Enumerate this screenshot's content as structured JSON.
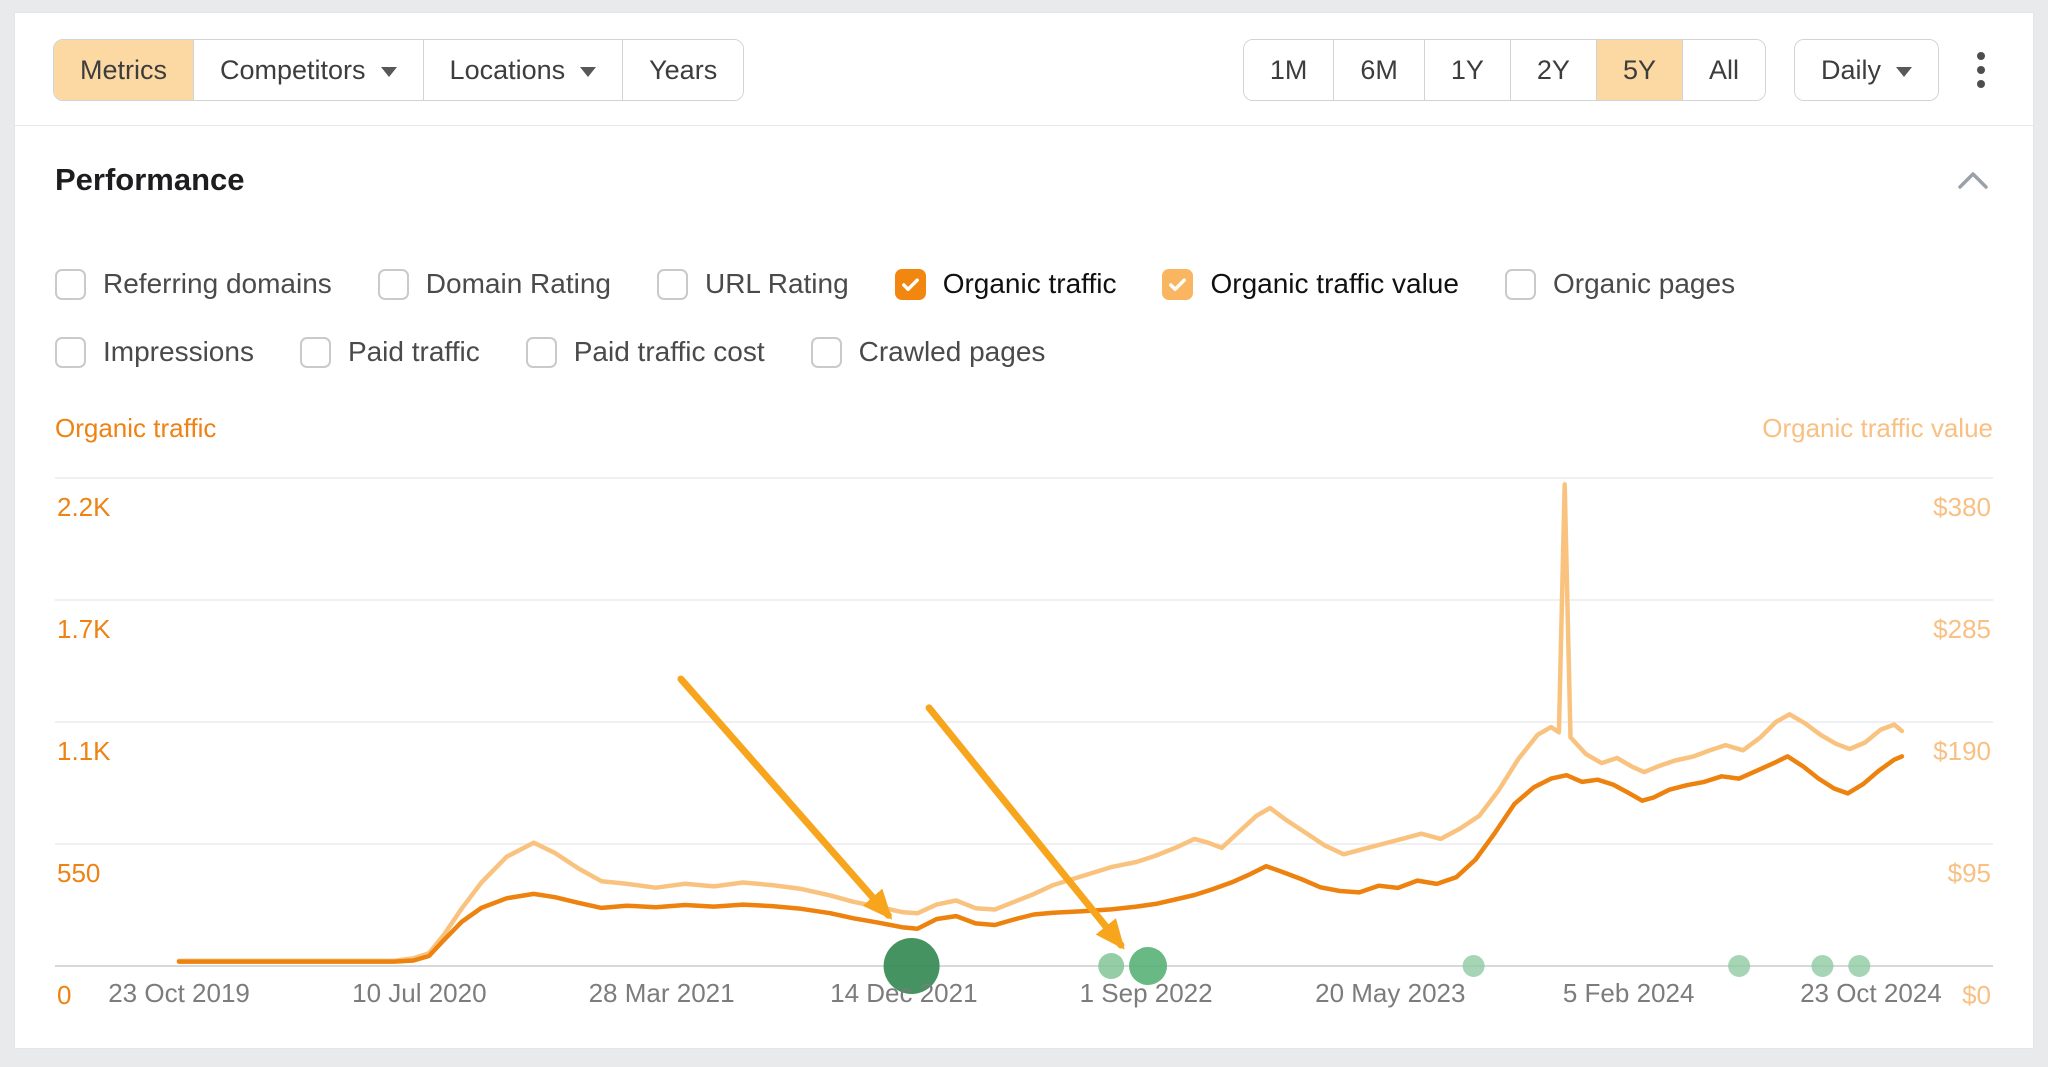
{
  "toolbar": {
    "accent_bg": "#fcd9a2",
    "tabs": [
      {
        "label": "Metrics",
        "active": true,
        "dropdown": false
      },
      {
        "label": "Competitors",
        "active": false,
        "dropdown": true
      },
      {
        "label": "Locations",
        "active": false,
        "dropdown": true
      },
      {
        "label": "Years",
        "active": false,
        "dropdown": false
      }
    ],
    "ranges": [
      {
        "label": "1M",
        "active": false
      },
      {
        "label": "6M",
        "active": false
      },
      {
        "label": "1Y",
        "active": false
      },
      {
        "label": "2Y",
        "active": false
      },
      {
        "label": "5Y",
        "active": true
      },
      {
        "label": "All",
        "active": false
      }
    ],
    "granularity": {
      "label": "Daily",
      "dropdown": true
    }
  },
  "section": {
    "title": "Performance"
  },
  "metrics": {
    "rows": [
      [
        {
          "label": "Referring domains",
          "checked": false
        },
        {
          "label": "Domain Rating",
          "checked": false
        },
        {
          "label": "URL Rating",
          "checked": false
        },
        {
          "label": "Organic traffic",
          "checked": true,
          "color": "#f1870f"
        },
        {
          "label": "Organic traffic value",
          "checked": true,
          "color": "#f9b55f"
        },
        {
          "label": "Organic pages",
          "checked": false
        }
      ],
      [
        {
          "label": "Impressions",
          "checked": false
        },
        {
          "label": "Paid traffic",
          "checked": false
        },
        {
          "label": "Paid traffic cost",
          "checked": false
        },
        {
          "label": "Crawled pages",
          "checked": false
        }
      ]
    ]
  },
  "chart_data": {
    "type": "line",
    "x_range": [
      "23 Oct 2019",
      "23 Oct 2024"
    ],
    "grid": true,
    "left_axis": {
      "label": "Organic traffic",
      "color": "#ee8213",
      "max": 2200,
      "ticks": [
        {
          "label": "2.2K",
          "value": 2200
        },
        {
          "label": "1.7K",
          "value": 1650
        },
        {
          "label": "1.1K",
          "value": 1100
        },
        {
          "label": "550",
          "value": 550
        },
        {
          "label": "0",
          "value": 0
        }
      ]
    },
    "right_axis": {
      "label": "Organic traffic value",
      "color": "#f8c083",
      "max": 380,
      "ticks": [
        {
          "label": "$380",
          "value": 380
        },
        {
          "label": "$285",
          "value": 285
        },
        {
          "label": "$190",
          "value": 190
        },
        {
          "label": "$95",
          "value": 95
        },
        {
          "label": "$0",
          "value": 0
        }
      ]
    },
    "x_ticks": [
      {
        "label": "23 Oct 2019",
        "pos": 0.064
      },
      {
        "label": "10 Jul 2020",
        "pos": 0.188
      },
      {
        "label": "28 Mar 2021",
        "pos": 0.313
      },
      {
        "label": "14 Dec 2021",
        "pos": 0.438
      },
      {
        "label": "1 Sep 2022",
        "pos": 0.563
      },
      {
        "label": "20 May 2023",
        "pos": 0.689
      },
      {
        "label": "5 Feb 2024",
        "pos": 0.812
      },
      {
        "label": "23 Oct 2024",
        "pos": 0.937
      }
    ],
    "series": [
      {
        "name": "Organic traffic",
        "axis": "left",
        "color": "#ee820e",
        "points": [
          [
            0.064,
            20
          ],
          [
            0.09,
            20
          ],
          [
            0.12,
            20
          ],
          [
            0.15,
            20
          ],
          [
            0.175,
            20
          ],
          [
            0.185,
            25
          ],
          [
            0.193,
            45
          ],
          [
            0.201,
            120
          ],
          [
            0.21,
            200
          ],
          [
            0.22,
            262
          ],
          [
            0.233,
            305
          ],
          [
            0.247,
            325
          ],
          [
            0.258,
            310
          ],
          [
            0.27,
            285
          ],
          [
            0.282,
            262
          ],
          [
            0.295,
            272
          ],
          [
            0.31,
            265
          ],
          [
            0.325,
            275
          ],
          [
            0.34,
            268
          ],
          [
            0.355,
            277
          ],
          [
            0.37,
            270
          ],
          [
            0.385,
            258
          ],
          [
            0.4,
            238
          ],
          [
            0.412,
            215
          ],
          [
            0.425,
            195
          ],
          [
            0.437,
            175
          ],
          [
            0.445,
            168
          ],
          [
            0.455,
            212
          ],
          [
            0.465,
            225
          ],
          [
            0.475,
            192
          ],
          [
            0.485,
            185
          ],
          [
            0.495,
            210
          ],
          [
            0.505,
            232
          ],
          [
            0.515,
            240
          ],
          [
            0.53,
            247
          ],
          [
            0.545,
            255
          ],
          [
            0.558,
            268
          ],
          [
            0.568,
            280
          ],
          [
            0.578,
            300
          ],
          [
            0.588,
            320
          ],
          [
            0.598,
            348
          ],
          [
            0.608,
            380
          ],
          [
            0.617,
            415
          ],
          [
            0.625,
            450
          ],
          [
            0.633,
            425
          ],
          [
            0.643,
            392
          ],
          [
            0.653,
            355
          ],
          [
            0.663,
            338
          ],
          [
            0.673,
            332
          ],
          [
            0.683,
            362
          ],
          [
            0.693,
            352
          ],
          [
            0.703,
            385
          ],
          [
            0.713,
            370
          ],
          [
            0.723,
            400
          ],
          [
            0.733,
            480
          ],
          [
            0.743,
            600
          ],
          [
            0.753,
            730
          ],
          [
            0.763,
            805
          ],
          [
            0.772,
            845
          ],
          [
            0.78,
            860
          ],
          [
            0.788,
            830
          ],
          [
            0.796,
            840
          ],
          [
            0.804,
            818
          ],
          [
            0.812,
            780
          ],
          [
            0.819,
            745
          ],
          [
            0.825,
            760
          ],
          [
            0.833,
            795
          ],
          [
            0.842,
            815
          ],
          [
            0.851,
            830
          ],
          [
            0.86,
            855
          ],
          [
            0.869,
            845
          ],
          [
            0.878,
            880
          ],
          [
            0.887,
            915
          ],
          [
            0.894,
            945
          ],
          [
            0.902,
            900
          ],
          [
            0.91,
            845
          ],
          [
            0.918,
            800
          ],
          [
            0.925,
            778
          ],
          [
            0.933,
            820
          ],
          [
            0.941,
            880
          ],
          [
            0.949,
            930
          ],
          [
            0.953,
            945
          ]
        ]
      },
      {
        "name": "Organic traffic value",
        "axis": "right",
        "color": "#f9c37f",
        "points": [
          [
            0.064,
            4
          ],
          [
            0.09,
            4
          ],
          [
            0.12,
            4
          ],
          [
            0.15,
            4
          ],
          [
            0.175,
            4
          ],
          [
            0.185,
            6
          ],
          [
            0.193,
            10
          ],
          [
            0.201,
            25
          ],
          [
            0.21,
            45
          ],
          [
            0.22,
            65
          ],
          [
            0.233,
            85
          ],
          [
            0.247,
            96
          ],
          [
            0.258,
            88
          ],
          [
            0.27,
            76
          ],
          [
            0.282,
            66
          ],
          [
            0.295,
            64
          ],
          [
            0.31,
            61
          ],
          [
            0.325,
            64
          ],
          [
            0.34,
            62
          ],
          [
            0.355,
            65
          ],
          [
            0.37,
            63
          ],
          [
            0.385,
            60
          ],
          [
            0.4,
            55
          ],
          [
            0.412,
            50
          ],
          [
            0.425,
            46
          ],
          [
            0.437,
            42
          ],
          [
            0.445,
            41
          ],
          [
            0.455,
            48
          ],
          [
            0.465,
            51
          ],
          [
            0.475,
            45
          ],
          [
            0.485,
            44
          ],
          [
            0.495,
            50
          ],
          [
            0.505,
            56
          ],
          [
            0.515,
            63
          ],
          [
            0.53,
            70
          ],
          [
            0.545,
            77
          ],
          [
            0.558,
            81
          ],
          [
            0.568,
            86
          ],
          [
            0.578,
            92
          ],
          [
            0.588,
            99
          ],
          [
            0.595,
            96
          ],
          [
            0.602,
            92
          ],
          [
            0.612,
            106
          ],
          [
            0.62,
            117
          ],
          [
            0.627,
            123
          ],
          [
            0.635,
            114
          ],
          [
            0.645,
            104
          ],
          [
            0.655,
            94
          ],
          [
            0.665,
            87
          ],
          [
            0.675,
            91
          ],
          [
            0.685,
            95
          ],
          [
            0.695,
            99
          ],
          [
            0.705,
            103
          ],
          [
            0.715,
            99
          ],
          [
            0.725,
            107
          ],
          [
            0.735,
            117
          ],
          [
            0.745,
            137
          ],
          [
            0.755,
            161
          ],
          [
            0.765,
            180
          ],
          [
            0.772,
            186
          ],
          [
            0.776,
            182
          ],
          [
            0.779,
            375
          ],
          [
            0.782,
            178
          ],
          [
            0.79,
            165
          ],
          [
            0.798,
            158
          ],
          [
            0.806,
            162
          ],
          [
            0.814,
            155
          ],
          [
            0.82,
            151
          ],
          [
            0.828,
            156
          ],
          [
            0.836,
            160
          ],
          [
            0.845,
            163
          ],
          [
            0.854,
            168
          ],
          [
            0.862,
            172
          ],
          [
            0.871,
            168
          ],
          [
            0.88,
            178
          ],
          [
            0.888,
            190
          ],
          [
            0.895,
            196
          ],
          [
            0.903,
            189
          ],
          [
            0.911,
            180
          ],
          [
            0.919,
            173
          ],
          [
            0.926,
            169
          ],
          [
            0.934,
            174
          ],
          [
            0.942,
            184
          ],
          [
            0.949,
            188
          ],
          [
            0.953,
            183
          ]
        ]
      }
    ],
    "events": [
      {
        "pos": 0.442,
        "r": 28,
        "color": "#348a52",
        "opacity": 0.92
      },
      {
        "pos": 0.545,
        "r": 13,
        "color": "#82c498",
        "opacity": 0.85
      },
      {
        "pos": 0.564,
        "r": 19,
        "color": "#58b176",
        "opacity": 0.9
      },
      {
        "pos": 0.732,
        "r": 11,
        "color": "#8ecba1",
        "opacity": 0.8
      },
      {
        "pos": 0.869,
        "r": 11,
        "color": "#8ecba1",
        "opacity": 0.8
      },
      {
        "pos": 0.912,
        "r": 11,
        "color": "#8ecba1",
        "opacity": 0.8
      },
      {
        "pos": 0.931,
        "r": 11,
        "color": "#8ecba1",
        "opacity": 0.8
      }
    ],
    "annotations": {
      "color": "#f7a51d",
      "arrows": [
        {
          "from": [
            0.323,
            0.412
          ],
          "to": [
            0.43,
            0.896
          ]
        },
        {
          "from": [
            0.451,
            0.471
          ],
          "to": [
            0.55,
            0.957
          ]
        }
      ]
    },
    "grid_color": "#ececee",
    "baseline_color": "#d7d8da",
    "x_label_color": "#7c7c7c"
  }
}
